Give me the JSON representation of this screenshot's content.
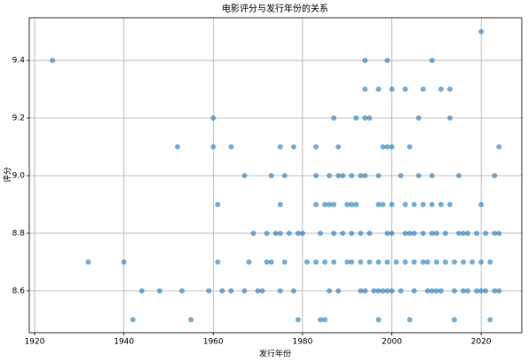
{
  "chart_data": {
    "type": "scatter",
    "title": "电影评分与发行年份的关系",
    "x_label": "发行年份",
    "y_label": "评分",
    "color": "#1f77b4",
    "grid": true,
    "xlim": [
      1918.8,
      2029.1
    ],
    "ylim": [
      8.455,
      9.548
    ],
    "xticks": [
      1920,
      1940,
      1960,
      1980,
      2000,
      2020
    ],
    "yticks": [
      8.6,
      8.8,
      {
        "value": 9,
        "label": "9.0"
      },
      9.2,
      9.4
    ],
    "x": [
      2020,
      1924,
      1994,
      1999,
      2009,
      1994,
      1997,
      2000,
      2003,
      2007,
      2011,
      2013,
      1960,
      1987,
      1992,
      1994,
      1995,
      2006,
      2013,
      1952,
      1960,
      1964,
      1975,
      1978,
      1983,
      1988,
      1998,
      1999,
      2000,
      2004,
      2024,
      1967,
      1973,
      1976,
      1983,
      1986,
      1988,
      1989,
      1991,
      1993,
      1994,
      1997,
      2002,
      2006,
      2009,
      2015,
      2023,
      1961,
      1975,
      1983,
      1985,
      1986,
      1987,
      1990,
      1991,
      1992,
      1997,
      1998,
      2000,
      2003,
      2005,
      2007,
      2009,
      2011,
      2013,
      2020,
      1969,
      1972,
      1974,
      1975,
      1977,
      1979,
      1980,
      1984,
      1987,
      1989,
      1991,
      1993,
      1995,
      1999,
      2000,
      2003,
      2004,
      2005,
      2007,
      2009,
      2010,
      2012,
      2015,
      2016,
      2017,
      2019,
      2021,
      2023,
      2024,
      1932,
      1940,
      1961,
      1968,
      1972,
      1973,
      1976,
      1981,
      1983,
      1985,
      1987,
      1990,
      1991,
      1993,
      1995,
      1997,
      1999,
      2001,
      2003,
      2005,
      2007,
      2008,
      2010,
      2012,
      2014,
      2016,
      2018,
      2020,
      2022,
      1944,
      1948,
      1953,
      1959,
      1962,
      1964,
      1967,
      1970,
      1971,
      1975,
      1978,
      1986,
      1988,
      1993,
      1994,
      1996,
      1997,
      1998,
      1999,
      2000,
      2002,
      2005,
      2008,
      2009,
      2010,
      2011,
      2014,
      2016,
      2017,
      2019,
      2020,
      2021,
      2023,
      2024,
      1942,
      1955,
      1979,
      1984,
      1985,
      1997,
      2004,
      2014,
      2022
    ],
    "y": [
      9.5,
      9.4,
      9.4,
      9.4,
      9.4,
      9.3,
      9.3,
      9.3,
      9.3,
      9.3,
      9.3,
      9.3,
      9.2,
      9.2,
      9.2,
      9.2,
      9.2,
      9.2,
      9.2,
      9.1,
      9.1,
      9.1,
      9.1,
      9.1,
      9.1,
      9.1,
      9.1,
      9.1,
      9.1,
      9.1,
      9.1,
      9.0,
      9.0,
      9.0,
      9.0,
      9.0,
      9.0,
      9.0,
      9.0,
      9.0,
      9.0,
      9.0,
      9.0,
      9.0,
      9.0,
      9.0,
      9.0,
      8.9,
      8.9,
      8.9,
      8.9,
      8.9,
      8.9,
      8.9,
      8.9,
      8.9,
      8.9,
      8.9,
      8.9,
      8.9,
      8.9,
      8.9,
      8.9,
      8.9,
      8.9,
      8.9,
      8.8,
      8.8,
      8.8,
      8.8,
      8.8,
      8.8,
      8.8,
      8.8,
      8.8,
      8.8,
      8.8,
      8.8,
      8.8,
      8.8,
      8.8,
      8.8,
      8.8,
      8.8,
      8.8,
      8.8,
      8.8,
      8.8,
      8.8,
      8.8,
      8.8,
      8.8,
      8.8,
      8.8,
      8.8,
      8.7,
      8.7,
      8.7,
      8.7,
      8.7,
      8.7,
      8.7,
      8.7,
      8.7,
      8.7,
      8.7,
      8.7,
      8.7,
      8.7,
      8.7,
      8.7,
      8.7,
      8.7,
      8.7,
      8.7,
      8.7,
      8.7,
      8.7,
      8.7,
      8.7,
      8.7,
      8.7,
      8.7,
      8.7,
      8.6,
      8.6,
      8.6,
      8.6,
      8.6,
      8.6,
      8.6,
      8.6,
      8.6,
      8.6,
      8.6,
      8.6,
      8.6,
      8.6,
      8.6,
      8.6,
      8.6,
      8.6,
      8.6,
      8.6,
      8.6,
      8.6,
      8.6,
      8.6,
      8.6,
      8.6,
      8.6,
      8.6,
      8.6,
      8.6,
      8.6,
      8.6,
      8.6,
      8.6,
      8.5,
      8.5,
      8.5,
      8.5,
      8.5,
      8.5,
      8.5,
      8.5,
      8.5
    ]
  }
}
